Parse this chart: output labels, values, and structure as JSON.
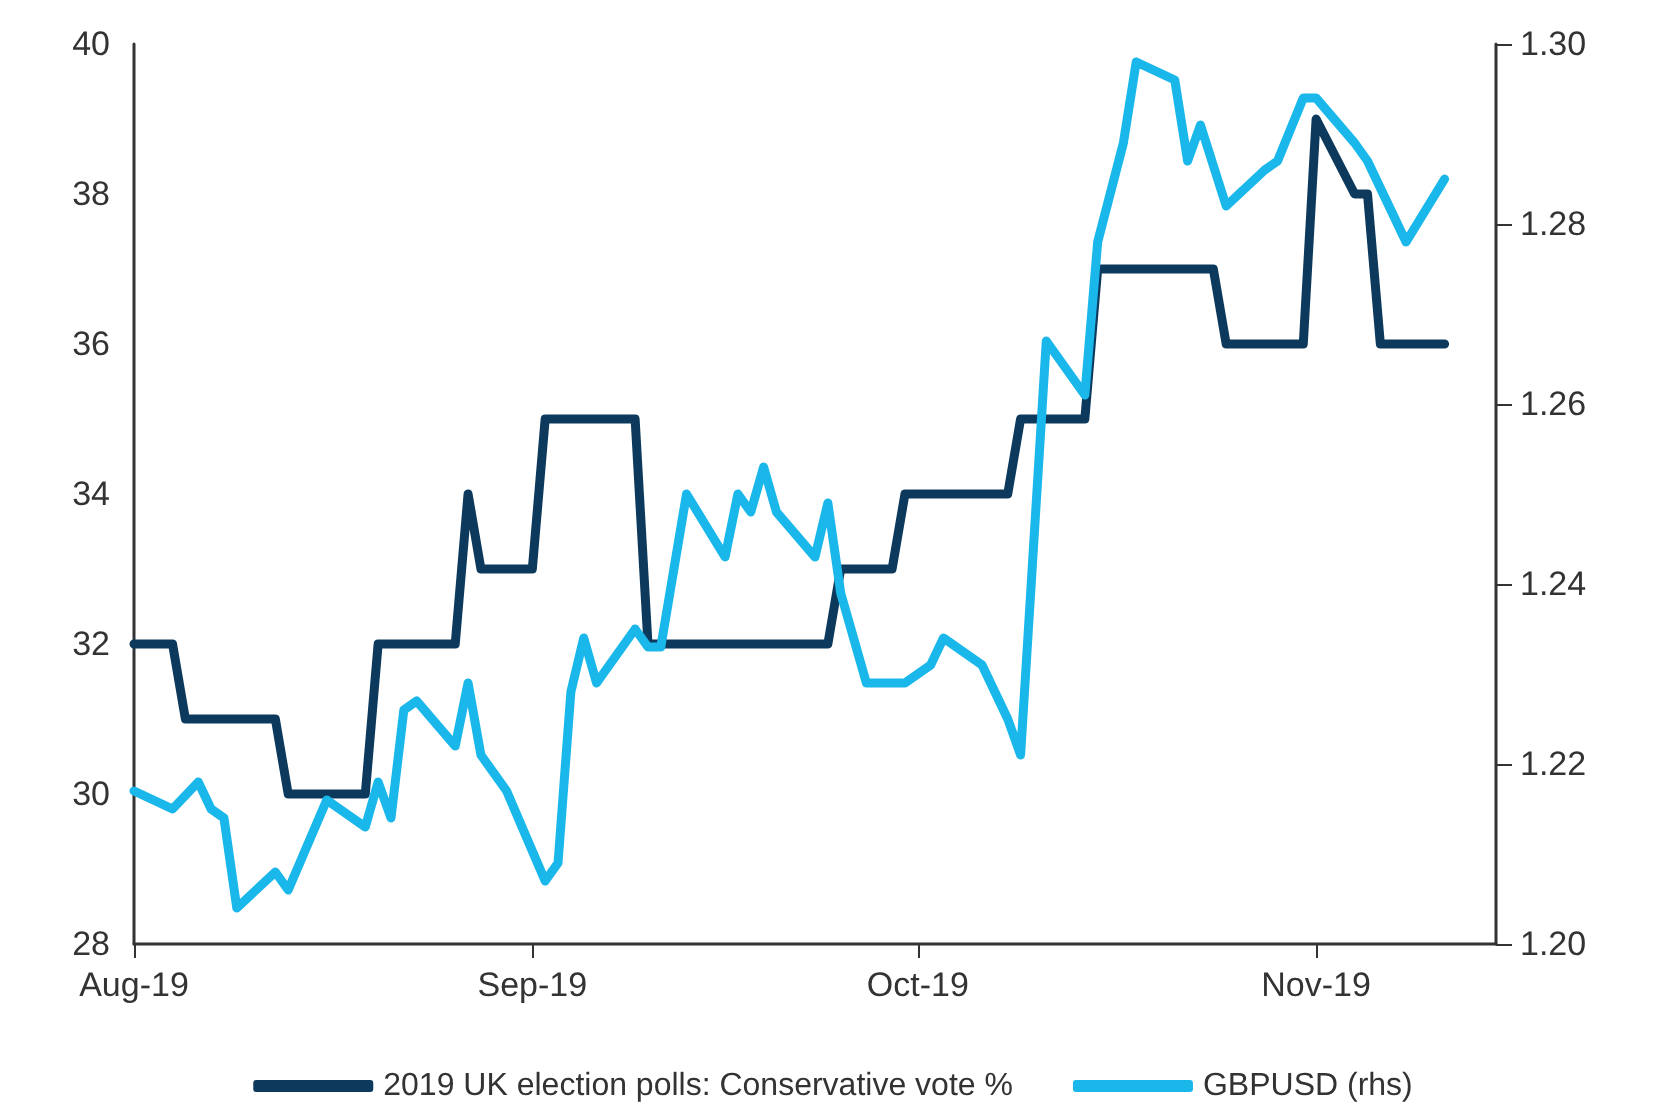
{
  "chart_data": {
    "type": "line",
    "xlim": [
      "2019-08-01",
      "2019-11-15"
    ],
    "xticks": [
      {
        "value": "2019-08-01",
        "label": "Aug-19"
      },
      {
        "value": "2019-09-01",
        "label": "Sep-19"
      },
      {
        "value": "2019-10-01",
        "label": "Oct-19"
      },
      {
        "value": "2019-11-01",
        "label": "Nov-19"
      }
    ],
    "ylim": [
      28,
      40
    ],
    "yticks": [
      28,
      30,
      32,
      34,
      36,
      38,
      40
    ],
    "y2lim": [
      1.2,
      1.3
    ],
    "y2ticks": [
      {
        "value": 1.2,
        "label": "1.20"
      },
      {
        "value": 1.22,
        "label": "1.22"
      },
      {
        "value": 1.24,
        "label": "1.24"
      },
      {
        "value": 1.26,
        "label": "1.26"
      },
      {
        "value": 1.28,
        "label": "1.28"
      },
      {
        "value": 1.3,
        "label": "1.30"
      }
    ],
    "grid": false,
    "legend": "bottom",
    "marker": "none",
    "line_style": "solid",
    "series": [
      {
        "name": "2019 UK election polls: Conservative vote %",
        "color": "#0d3a5c",
        "x": [
          "2019-08-01",
          "2019-08-04",
          "2019-08-05",
          "2019-08-12",
          "2019-08-13",
          "2019-08-19",
          "2019-08-20",
          "2019-08-26",
          "2019-08-27",
          "2019-08-28",
          "2019-09-01",
          "2019-09-02",
          "2019-09-09",
          "2019-09-10",
          "2019-09-24",
          "2019-09-25",
          "2019-09-29",
          "2019-09-30",
          "2019-10-08",
          "2019-10-09",
          "2019-10-14",
          "2019-10-15",
          "2019-10-24",
          "2019-10-25",
          "2019-10-31",
          "2019-11-01",
          "2019-11-04",
          "2019-11-05",
          "2019-11-06",
          "2019-11-11"
        ],
        "values": [
          32,
          32,
          31,
          31,
          30,
          30,
          32,
          32,
          34,
          33,
          33,
          35,
          35,
          32,
          32,
          33,
          33,
          34,
          34,
          35,
          35,
          37,
          37,
          36,
          36,
          39,
          38,
          38,
          36,
          36
        ]
      },
      {
        "name": "GBPUSD (rhs)",
        "color": "#1ab7ea",
        "axis": "y2",
        "x": [
          "2019-08-01",
          "2019-08-04",
          "2019-08-06",
          "2019-08-07",
          "2019-08-08",
          "2019-08-09",
          "2019-08-12",
          "2019-08-13",
          "2019-08-16",
          "2019-08-19",
          "2019-08-20",
          "2019-08-21",
          "2019-08-22",
          "2019-08-23",
          "2019-08-26",
          "2019-08-27",
          "2019-08-28",
          "2019-08-30",
          "2019-09-02",
          "2019-09-03",
          "2019-09-04",
          "2019-09-05",
          "2019-09-06",
          "2019-09-09",
          "2019-09-10",
          "2019-09-11",
          "2019-09-13",
          "2019-09-16",
          "2019-09-17",
          "2019-09-18",
          "2019-09-19",
          "2019-09-20",
          "2019-09-23",
          "2019-09-24",
          "2019-09-25",
          "2019-09-27",
          "2019-09-30",
          "2019-10-02",
          "2019-10-03",
          "2019-10-06",
          "2019-10-08",
          "2019-10-09",
          "2019-10-11",
          "2019-10-14",
          "2019-10-15",
          "2019-10-17",
          "2019-10-18",
          "2019-10-21",
          "2019-10-22",
          "2019-10-23",
          "2019-10-25",
          "2019-10-28",
          "2019-10-29",
          "2019-10-31",
          "2019-11-01",
          "2019-11-04",
          "2019-11-05",
          "2019-11-08",
          "2019-11-11"
        ],
        "values": [
          1.217,
          1.215,
          1.218,
          1.215,
          1.214,
          1.204,
          1.208,
          1.206,
          1.216,
          1.213,
          1.218,
          1.214,
          1.226,
          1.227,
          1.222,
          1.229,
          1.221,
          1.217,
          1.207,
          1.209,
          1.228,
          1.234,
          1.229,
          1.235,
          1.233,
          1.233,
          1.25,
          1.243,
          1.25,
          1.248,
          1.253,
          1.248,
          1.243,
          1.249,
          1.239,
          1.229,
          1.229,
          1.231,
          1.234,
          1.231,
          1.225,
          1.221,
          1.267,
          1.261,
          1.278,
          1.289,
          1.298,
          1.296,
          1.287,
          1.291,
          1.282,
          1.286,
          1.287,
          1.294,
          1.294,
          1.289,
          1.287,
          1.278,
          1.285
        ]
      }
    ]
  }
}
